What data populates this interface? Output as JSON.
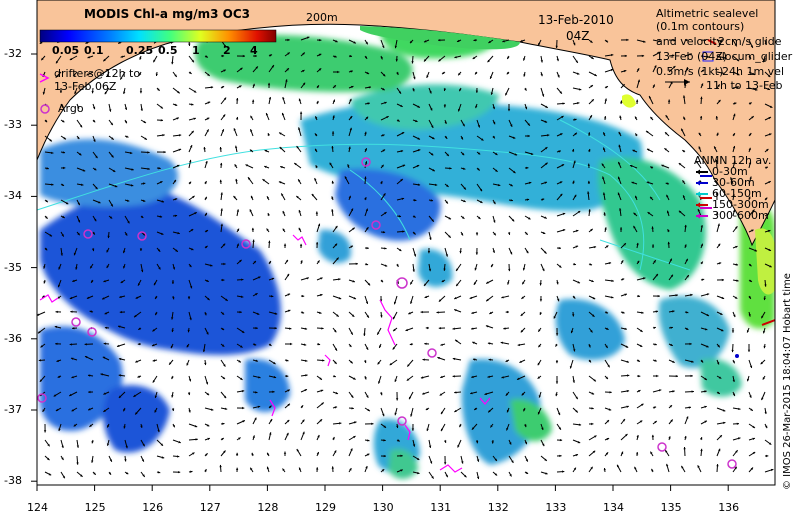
{
  "colorbar": {
    "title": "MODIS Chl-a mg/m3 OC3",
    "ticks": [
      "0.05",
      "0.1",
      "0.25",
      "0.5",
      "1",
      "2",
      "4"
    ]
  },
  "header": {
    "date": "13-Feb-2010",
    "time": "04Z",
    "isobath_label": "200m"
  },
  "legend_left": {
    "drifters_line1": "drifters@12h to",
    "drifters_line2": "13-Feb 06Z",
    "argo": "Argo"
  },
  "legend_right": {
    "line1": "Altimetric sealevel",
    "line2": "(0.1m contours)",
    "line3": "and velocity",
    "line4": "13-Feb (04Z)",
    "glider_label": "slocum_glider",
    "glide_label": "2cm/s glide",
    "scale_label": "0.5m/s (1kt)",
    "vel_label": "24h 1m vel",
    "vel_range": "11h to 13-Feb"
  },
  "anmn": {
    "title": "ANMN 12h av.",
    "items": [
      {
        "label": "0-30m",
        "color": "#000000"
      },
      {
        "label": "30-60m",
        "color": "#0000cc"
      },
      {
        "label": "60-150m",
        "color": "#00cccc"
      },
      {
        "label": "150-300m",
        "color": "#cc0000"
      },
      {
        "label": "300-600m",
        "color": "#cc00cc"
      }
    ]
  },
  "axes": {
    "x_ticks": [
      "124",
      "125",
      "126",
      "127",
      "128",
      "129",
      "130",
      "131",
      "132",
      "133",
      "134",
      "135",
      "136"
    ],
    "y_ticks": [
      "-32",
      "-33",
      "-34",
      "-35",
      "-36",
      "-37",
      "-38"
    ]
  },
  "credit": "© IMOS 26-Mar-2015 18:04:07 Hobart time",
  "colors": {
    "land": "#f9c49a",
    "chl_low": "#1a3fd6",
    "chl_mid": "#2a9fd8",
    "chl_high": "#30d080",
    "drifter": "#ff00ff",
    "argo": "#cc33cc"
  }
}
